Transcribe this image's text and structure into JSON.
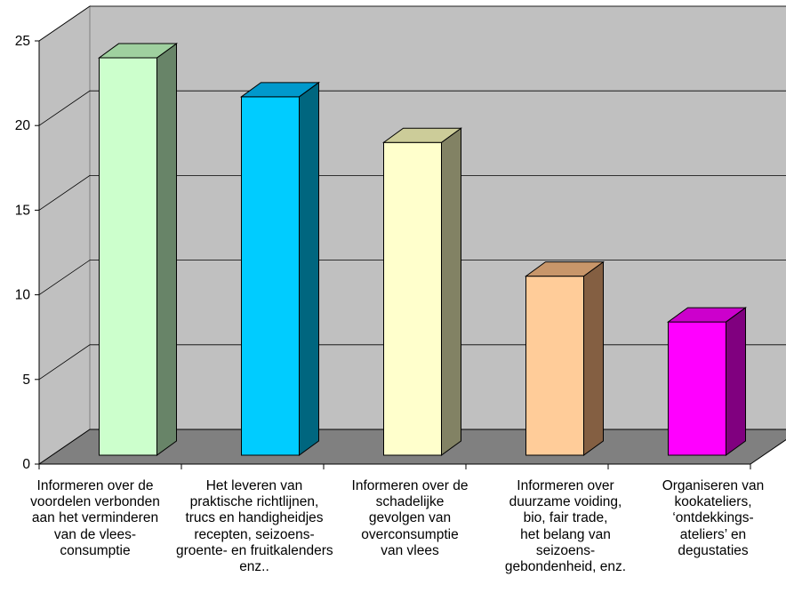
{
  "chart_data": {
    "type": "bar",
    "title": "",
    "xlabel": "",
    "ylabel": "",
    "ylim": [
      0,
      25
    ],
    "yticks": [
      "0",
      "5",
      "10",
      "15",
      "20",
      "25"
    ],
    "grid": true,
    "legend": "none",
    "categories": [
      [
        "Informeren over de",
        "voordelen verbonden",
        "aan het verminderen",
        "van de vlees-",
        "consumptie"
      ],
      [
        "Het leveren van",
        "praktische richtlijnen,",
        "trucs en handigheidjes",
        "recepten, seizoens-",
        "groente- en fruitkalenders",
        "enz.."
      ],
      [
        "Informeren over de",
        "schadelijke",
        "gevolgen van",
        "overconsumptie",
        "van vlees"
      ],
      [
        "Informeren over",
        "duurzame voiding,",
        "bio, fair trade,",
        "het belang van",
        "seizoens-",
        "gebondenheid, enz."
      ],
      [
        "Organiseren van",
        "kookateliers,",
        "‘ontdekkings-",
        "ateliers’  en",
        "degustaties"
      ]
    ],
    "values": [
      24,
      21.7,
      19,
      11.1,
      8.4
    ],
    "colors": [
      {
        "front": "#ccffcc",
        "side": "#688468",
        "top": "#9fd09f"
      },
      {
        "front": "#00ccff",
        "side": "#00667f",
        "top": "#0099cc"
      },
      {
        "front": "#ffffcc",
        "side": "#828264",
        "top": "#cccc99"
      },
      {
        "front": "#ffcc99",
        "side": "#845f42",
        "top": "#c8966a"
      },
      {
        "front": "#ff00ff",
        "side": "#80007f",
        "top": "#cc00cc"
      }
    ],
    "wall_color": "#c0c0c0",
    "floor_color": "#808080"
  }
}
